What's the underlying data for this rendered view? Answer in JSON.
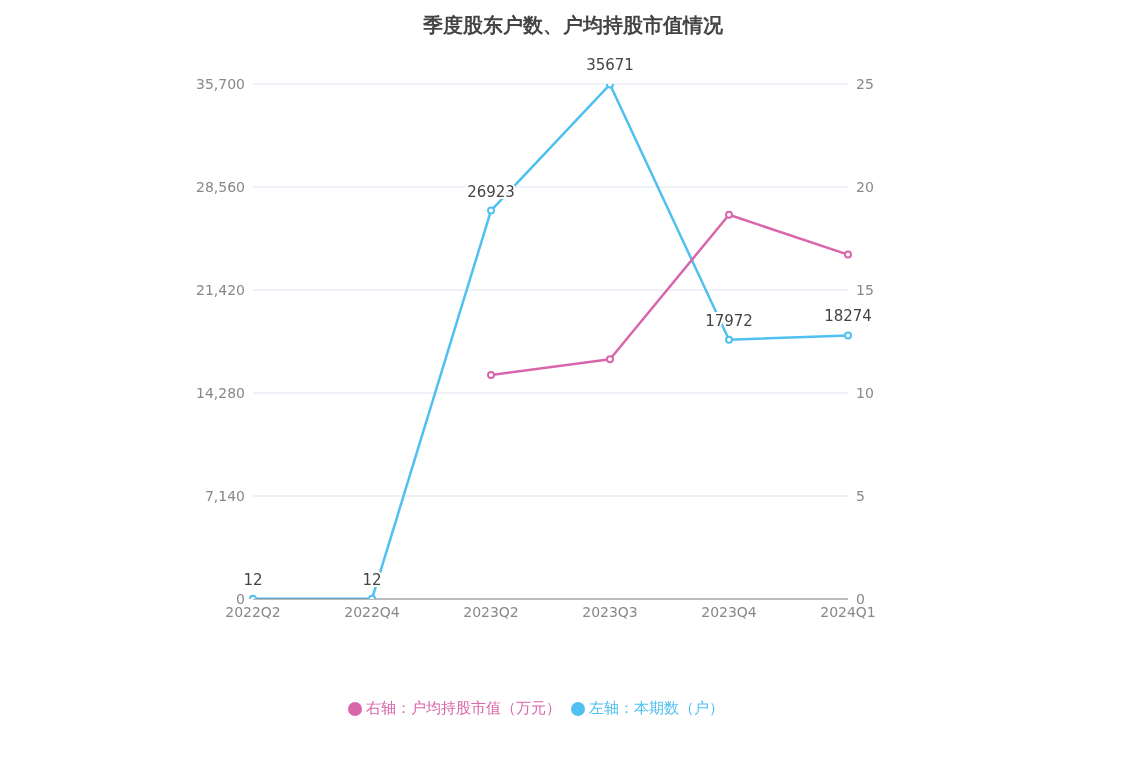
{
  "chart_data": {
    "type": "line",
    "title": "季度股东户数、户均持股市值情况",
    "categories": [
      "2022Q2",
      "2022Q4",
      "2023Q2",
      "2023Q3",
      "2023Q4",
      "2024Q1"
    ],
    "series": [
      {
        "name": "左轴：本期数（户）",
        "color": "#4fc0f0",
        "values": [
          12,
          12,
          26923,
          35671,
          17972,
          18274
        ],
        "value_labels": [
          "12",
          "12",
          "26923",
          "35671",
          "17972",
          "18274"
        ]
      },
      {
        "name": "右轴：户均持股市值（万元）",
        "color": "#d966aa",
        "axis": "y2",
        "values": [
          null,
          null,
          10.87,
          11.64,
          18.65,
          16.72
        ]
      }
    ],
    "ylim": [
      0,
      35700
    ],
    "yticks": [
      0,
      {
        "value": 7140,
        "label": "7,140"
      },
      {
        "value": 14280,
        "label": "14,280"
      },
      {
        "value": 21420,
        "label": "21,420"
      },
      {
        "value": 28560,
        "label": "28,560"
      },
      {
        "value": 35700,
        "label": "35,700"
      }
    ],
    "y2lim": [
      0,
      25
    ],
    "y2ticks": [
      0,
      5,
      10,
      15,
      20,
      25
    ],
    "grid": "y",
    "legend": "bottom",
    "marker": "circle",
    "line_style": "solid"
  }
}
